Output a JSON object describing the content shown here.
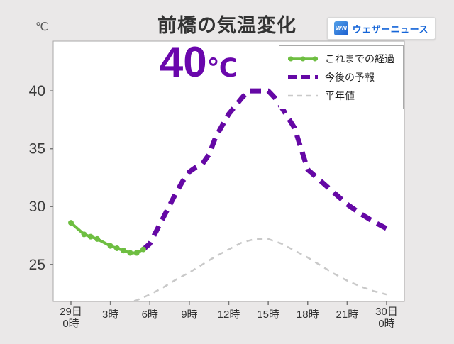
{
  "header": {
    "title": "前橋の気温変化",
    "unit_label": "℃"
  },
  "logo": {
    "mark": "WN",
    "text": "ウェザーニュース",
    "brand_color": "#1565d8"
  },
  "annotation": {
    "value": "40",
    "unit": "℃",
    "color": "#6a07ac"
  },
  "legend": [
    {
      "label": "これまでの経過",
      "style": "solid-marker",
      "color": "#6ebe41"
    },
    {
      "label": "今後の予報",
      "style": "dashed-thick",
      "color": "#6508a5"
    },
    {
      "label": "平年値",
      "style": "dashed-thin",
      "color": "#c9c9c9"
    }
  ],
  "chart_data": {
    "type": "line",
    "title": "前橋の気温変化",
    "ylabel": "℃",
    "ylim": [
      21.8,
      44.3
    ],
    "x_range_hours": [
      0,
      24
    ],
    "grid": false,
    "legend_position": "top-right",
    "y_ticks": [
      25,
      30,
      35,
      40
    ],
    "x_ticks": [
      {
        "h": 0,
        "lines": [
          "29日",
          "0時"
        ]
      },
      {
        "h": 3,
        "lines": [
          "3時"
        ]
      },
      {
        "h": 6,
        "lines": [
          "6時"
        ]
      },
      {
        "h": 9,
        "lines": [
          "9時"
        ]
      },
      {
        "h": 12,
        "lines": [
          "12時"
        ]
      },
      {
        "h": 15,
        "lines": [
          "15時"
        ]
      },
      {
        "h": 18,
        "lines": [
          "18時"
        ]
      },
      {
        "h": 21,
        "lines": [
          "21時"
        ]
      },
      {
        "h": 24,
        "lines": [
          "30日",
          "0時"
        ]
      }
    ],
    "series": [
      {
        "name": "平年値",
        "style": "dashed-thin",
        "color": "#c9c9c9",
        "markers": false,
        "points": [
          [
            0,
            21.5
          ],
          [
            2,
            21.3
          ],
          [
            4,
            21.6
          ],
          [
            5,
            21.9
          ],
          [
            6,
            22.4
          ],
          [
            7,
            23.0
          ],
          [
            8,
            23.7
          ],
          [
            9,
            24.3
          ],
          [
            10,
            25.0
          ],
          [
            11,
            25.7
          ],
          [
            12,
            26.3
          ],
          [
            13,
            26.9
          ],
          [
            14,
            27.2
          ],
          [
            15,
            27.2
          ],
          [
            16,
            26.8
          ],
          [
            17,
            26.2
          ],
          [
            18,
            25.6
          ],
          [
            19,
            24.9
          ],
          [
            20,
            24.2
          ],
          [
            21,
            23.6
          ],
          [
            22,
            23.1
          ],
          [
            23,
            22.7
          ],
          [
            24,
            22.4
          ]
        ]
      },
      {
        "name": "今後の予報",
        "style": "dashed-thick",
        "color": "#6508a5",
        "markers": false,
        "points": [
          [
            5.5,
            26.3
          ],
          [
            6,
            26.8
          ],
          [
            7,
            29.0
          ],
          [
            8,
            31.2
          ],
          [
            8.5,
            32.2
          ],
          [
            9,
            33.0
          ],
          [
            9.5,
            33.4
          ],
          [
            10,
            33.7
          ],
          [
            10.5,
            34.5
          ],
          [
            11,
            36.0
          ],
          [
            12,
            38.0
          ],
          [
            13,
            39.4
          ],
          [
            13.5,
            40.0
          ],
          [
            15,
            40.0
          ],
          [
            15.5,
            39.4
          ],
          [
            16,
            38.6
          ],
          [
            17,
            36.8
          ],
          [
            18,
            33.2
          ],
          [
            19,
            32.2
          ],
          [
            20,
            31.2
          ],
          [
            21,
            30.2
          ],
          [
            22,
            29.4
          ],
          [
            23,
            28.7
          ],
          [
            24,
            28.1
          ]
        ]
      },
      {
        "name": "これまでの経過",
        "style": "solid-marker",
        "color": "#6ebe41",
        "markers": true,
        "points": [
          [
            0,
            28.6
          ],
          [
            1,
            27.6
          ],
          [
            1.5,
            27.4
          ],
          [
            2,
            27.2
          ],
          [
            3,
            26.6
          ],
          [
            3.5,
            26.4
          ],
          [
            4,
            26.2
          ],
          [
            4.5,
            26.0
          ],
          [
            5,
            26.0
          ],
          [
            5.5,
            26.3
          ]
        ]
      }
    ]
  }
}
